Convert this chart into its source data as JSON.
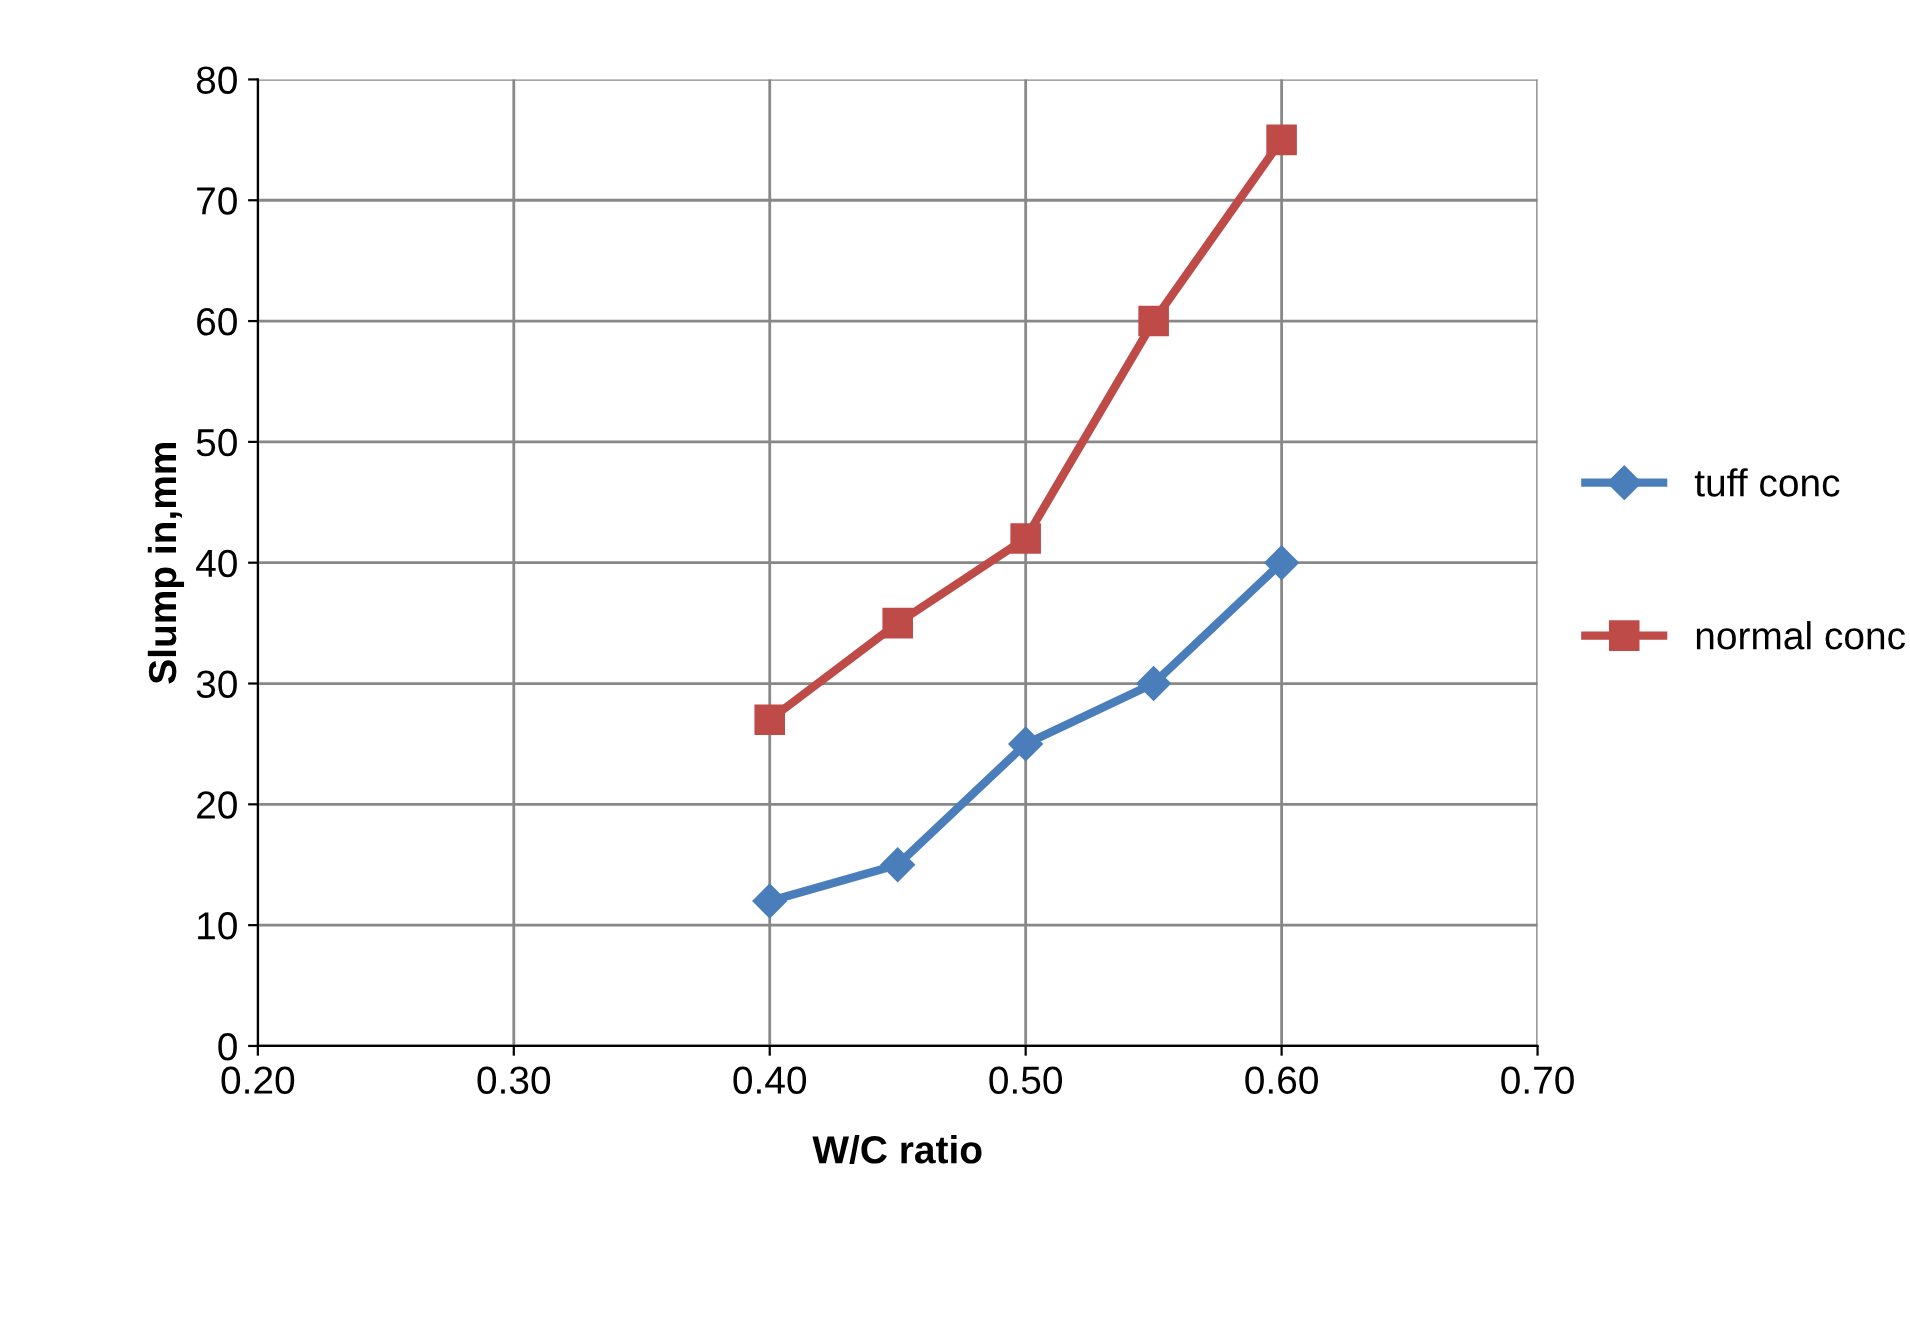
{
  "chart_data": {
    "type": "line",
    "xlabel": "W/C ratio",
    "ylabel": "Slump in,mm",
    "x": [
      0.4,
      0.45,
      0.5,
      0.55,
      0.6
    ],
    "series": [
      {
        "name": "tuff conc",
        "color": "#4a7ebb",
        "values": [
          12,
          15,
          25,
          30,
          40
        ],
        "marker": "diamond"
      },
      {
        "name": "normal conc",
        "color": "#be4b48",
        "values": [
          27,
          35,
          42,
          60,
          75
        ],
        "marker": "square"
      }
    ],
    "xlim": [
      0.2,
      0.7
    ],
    "xticks": [
      {
        "value": 0.2,
        "label": "0.20"
      },
      {
        "value": 0.3,
        "label": "0.30"
      },
      {
        "value": 0.4,
        "label": "0.40"
      },
      {
        "value": 0.5,
        "label": "0.50"
      },
      {
        "value": 0.6,
        "label": "0.60"
      },
      {
        "value": 0.7,
        "label": "0.70"
      }
    ],
    "ylim": [
      0,
      80
    ],
    "yticks": [
      0,
      10,
      20,
      30,
      40,
      50,
      60,
      70,
      80
    ],
    "grid": true,
    "legend": "right",
    "line_style": "solid"
  }
}
